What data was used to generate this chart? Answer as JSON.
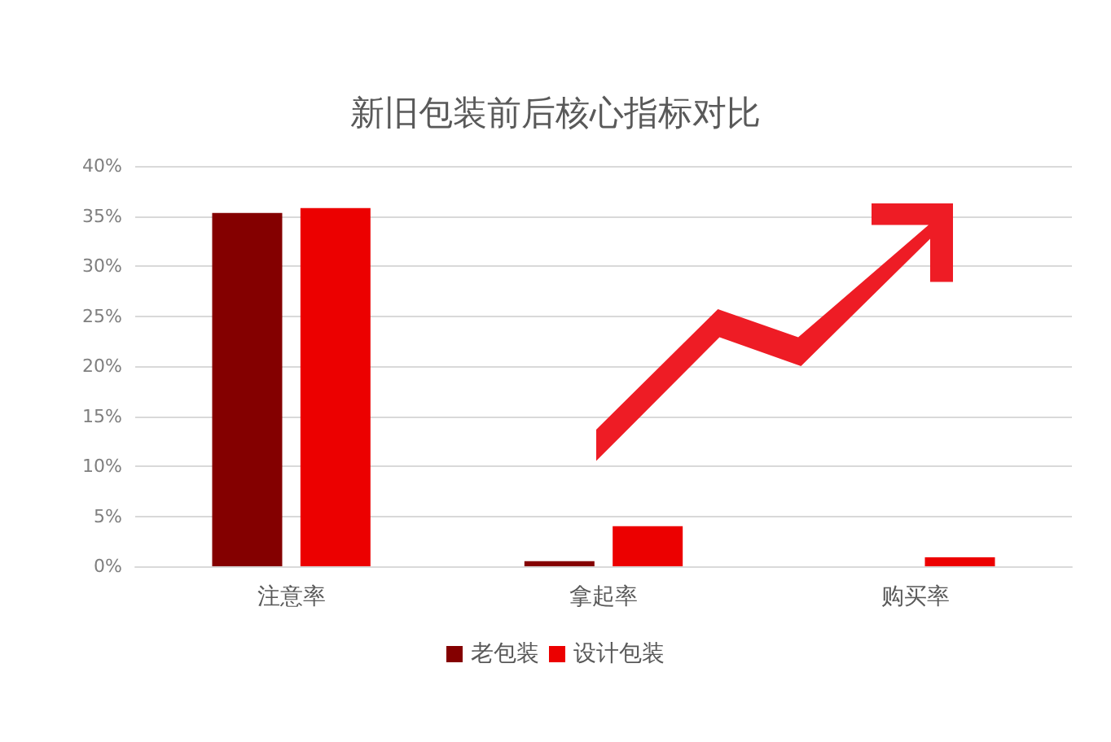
{
  "chart_data": {
    "type": "bar",
    "title": "新旧包装前后核心指标对比",
    "categories": [
      "注意率",
      "拿起率",
      "购买率"
    ],
    "series": [
      {
        "name": "老包装",
        "color": "#840000",
        "values": [
          35.3,
          0.5,
          0
        ]
      },
      {
        "name": "设计包装",
        "color": "#ec0000",
        "values": [
          35.8,
          4.0,
          0.9
        ]
      }
    ],
    "ylim": [
      0,
      40
    ],
    "yticks": [
      {
        "value": 0,
        "label": "0%"
      },
      {
        "value": 5,
        "label": "5%"
      },
      {
        "value": 10,
        "label": "10%"
      },
      {
        "value": 15,
        "label": "15%"
      },
      {
        "value": 20,
        "label": "20%"
      },
      {
        "value": 25,
        "label": "25%"
      },
      {
        "value": 30,
        "label": "30%"
      },
      {
        "value": 35,
        "label": "35%"
      },
      {
        "value": 40,
        "label": "40%"
      }
    ],
    "grid": "y",
    "legend": "bottom"
  }
}
